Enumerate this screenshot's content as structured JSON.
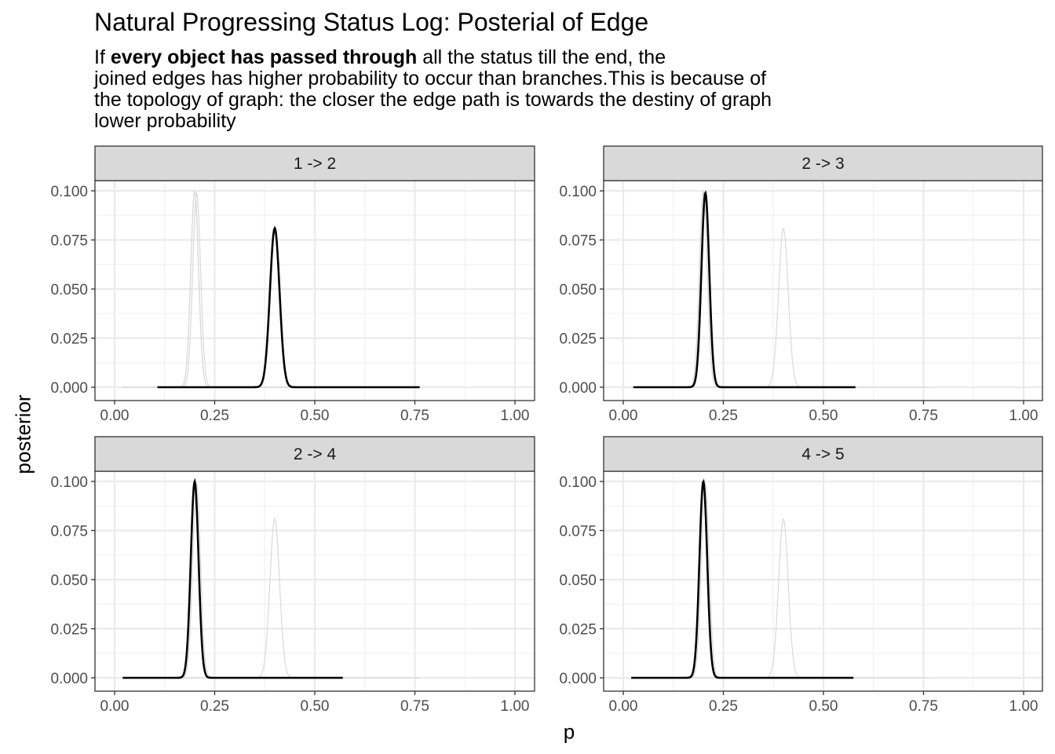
{
  "title": "Natural Progressing Status Log: Posterial of Edge",
  "subtitle": {
    "line1_prefix": "If ",
    "line1_bold": "every object has passed through",
    "line1_suffix": " all the status till the end, the",
    "line2": "joined edges has higher probability to occur than branches.This is because of",
    "line3": "the topology of graph: the closer the edge path is towards the destiny of graph",
    "line4": "lower probability"
  },
  "chart_data": {
    "type": "line",
    "xlabel": "p",
    "ylabel": "posterior",
    "xlim": [
      0,
      1
    ],
    "ylim": [
      0,
      0.1
    ],
    "x_ticks": [
      "0.00",
      "0.25",
      "0.50",
      "0.75",
      "1.00"
    ],
    "y_ticks": [
      "0.000",
      "0.025",
      "0.050",
      "0.075",
      "0.100"
    ],
    "grid": true,
    "colors": {
      "highlight": "#000000",
      "background": "#d9d9d9",
      "strip": "#d9d9d9"
    },
    "panels": [
      {
        "strip": "1 -> 2",
        "peak_p": 0.4,
        "peak_posterior": 0.081,
        "sd": 0.012,
        "x_range": [
          0.107,
          0.762
        ]
      },
      {
        "strip": "2 -> 3",
        "peak_p": 0.205,
        "peak_posterior": 0.099,
        "sd": 0.0098,
        "x_range": [
          0.025,
          0.58
        ]
      },
      {
        "strip": "2 -> 4",
        "peak_p": 0.2,
        "peak_posterior": 0.1,
        "sd": 0.0097,
        "x_range": [
          0.02,
          0.57
        ]
      },
      {
        "strip": "4 -> 5",
        "peak_p": 0.2,
        "peak_posterior": 0.1,
        "sd": 0.0097,
        "x_range": [
          0.02,
          0.575
        ]
      }
    ]
  }
}
